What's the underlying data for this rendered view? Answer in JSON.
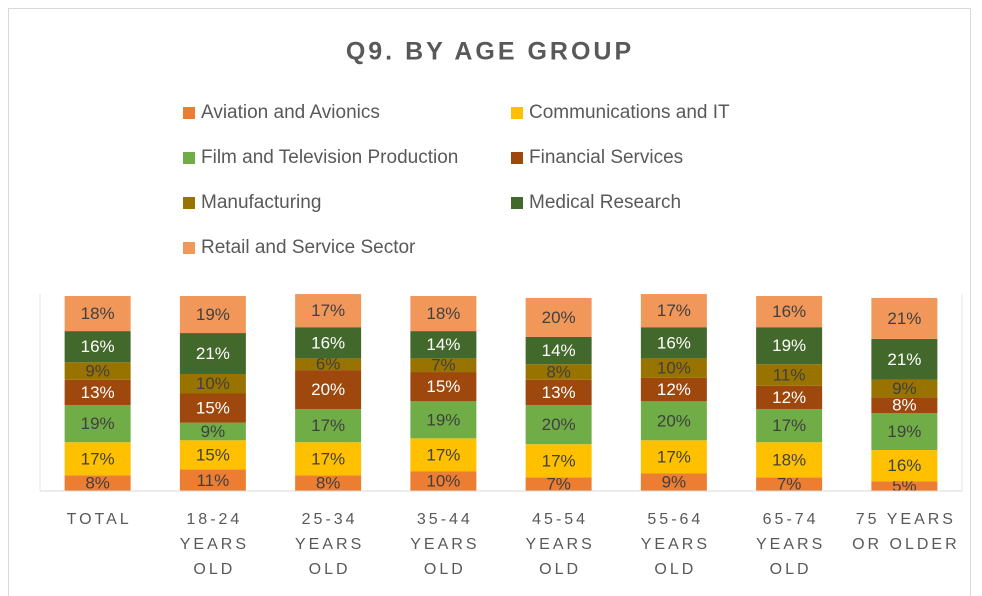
{
  "chart_data": {
    "type": "stacked_bar",
    "title": "Q9. BY AGE GROUP",
    "categories": [
      "TOTAL",
      "18-24 YEARS OLD",
      "25-34 YEARS OLD",
      "35-44 YEARS OLD",
      "45-54 YEARS OLD",
      "55-64 YEARS OLD",
      "65-74 YEARS OLD",
      "75 YEARS OR OLDER"
    ],
    "ylim": [
      0,
      100
    ],
    "legend": "top",
    "series": [
      {
        "name": "Aviation and Avionics",
        "color": "#ED7D31",
        "values": [
          8,
          11,
          8,
          10,
          7,
          9,
          7,
          5
        ],
        "value_labels": [
          "8%",
          "11%",
          "8%",
          "10%",
          "7%",
          "9%",
          "7%",
          "5%"
        ]
      },
      {
        "name": "Communications and IT",
        "color": "#FFC000",
        "values": [
          17,
          15,
          17,
          17,
          17,
          17,
          18,
          16
        ],
        "value_labels": [
          "17%",
          "15%",
          "17%",
          "17%",
          "17%",
          "17%",
          "18%",
          "16%"
        ]
      },
      {
        "name": "Film and Television Production",
        "color": "#70AD47",
        "values": [
          19,
          9,
          17,
          19,
          20,
          20,
          17,
          19
        ],
        "value_labels": [
          "19%",
          "9%",
          "17%",
          "19%",
          "20%",
          "20%",
          "17%",
          "19%"
        ]
      },
      {
        "name": "Financial Services",
        "color": "#9E480E",
        "values": [
          13,
          15,
          20,
          15,
          13,
          12,
          12,
          8
        ],
        "value_labels": [
          "13%",
          "15%",
          "20%",
          "15%",
          "13%",
          "12%",
          "12%",
          "8%"
        ]
      },
      {
        "name": "Manufacturing",
        "color": "#997300",
        "values": [
          9,
          10,
          6,
          7,
          8,
          10,
          11,
          9
        ],
        "value_labels": [
          "9%",
          "10%",
          "6%",
          "7%",
          "8%",
          "10%",
          "11%",
          "9%"
        ]
      },
      {
        "name": "Medical Research",
        "color": "#43682B",
        "values": [
          16,
          21,
          16,
          14,
          14,
          16,
          19,
          21
        ],
        "value_labels": [
          "16%",
          "21%",
          "16%",
          "14%",
          "14%",
          "16%",
          "19%",
          "21%"
        ]
      },
      {
        "name": "Retail and Service Sector",
        "color": "#F1975A",
        "values": [
          18,
          19,
          17,
          18,
          20,
          17,
          16,
          21
        ],
        "value_labels": [
          "18%",
          "19%",
          "17%",
          "18%",
          "20%",
          "17%",
          "16%",
          "21%"
        ]
      }
    ]
  }
}
